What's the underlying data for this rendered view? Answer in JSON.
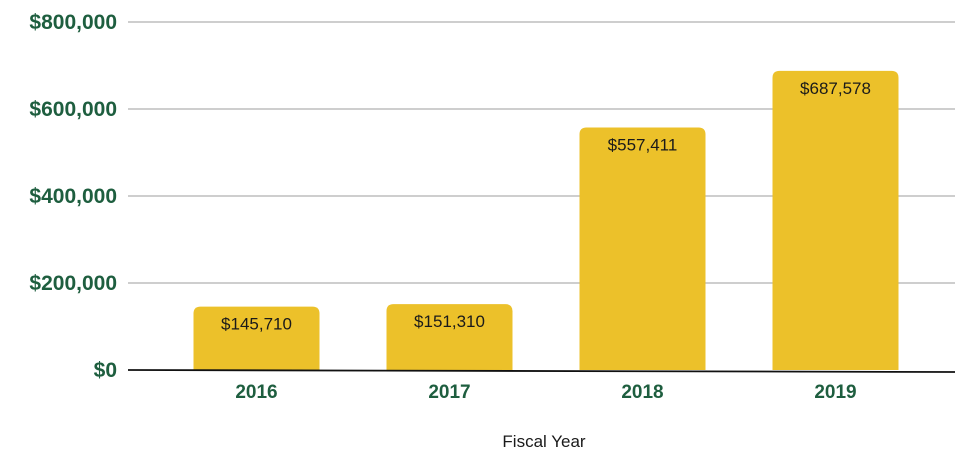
{
  "chart_data": {
    "type": "bar",
    "categories": [
      "2016",
      "2017",
      "2018",
      "2019"
    ],
    "values": [
      145710,
      151310,
      557411,
      687578
    ],
    "data_labels": [
      "$145,710",
      "$151,310",
      "$557,411",
      "$687,578"
    ],
    "xlabel": "Fiscal Year",
    "ylabel": "",
    "ylim": [
      0,
      800000
    ],
    "y_ticks": [
      0,
      200000,
      400000,
      600000,
      800000
    ],
    "y_tick_labels": [
      "$0",
      "$200,000",
      "$400,000",
      "$600,000",
      "$800,000"
    ],
    "grid": true,
    "legend": "none"
  },
  "colors": {
    "bar": "#ECC12A",
    "axis_text": "#1E5E3F",
    "grid": "#BDBDBD",
    "baseline": "#111111"
  }
}
